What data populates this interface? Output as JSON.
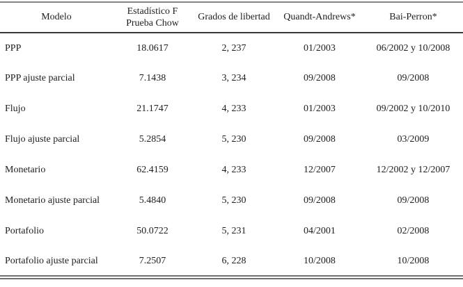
{
  "table": {
    "header": {
      "modelo": "Modelo",
      "estadistico_line1": "Estadístico F",
      "estadistico_line2": "Prueba Chow",
      "grados": "Grados de libertad",
      "quandt": "Quandt-Andrews*",
      "bai": "Bai-Perron*"
    },
    "rows": [
      [
        "PPP",
        "18.0617",
        "2, 237",
        "01/2003",
        "06/2002 y 10/2008"
      ],
      [
        "PPP ajuste parcial",
        "7.1438",
        "3, 234",
        "09/2008",
        "09/2008"
      ],
      [
        "Flujo",
        "21.1747",
        "4, 233",
        "01/2003",
        "09/2002 y 10/2010"
      ],
      [
        "Flujo ajuste parcial",
        "5.2854",
        "5, 230",
        "09/2008",
        "03/2009"
      ],
      [
        "Monetario",
        "62.4159",
        "4, 233",
        "12/2007",
        "12/2002 y 12/2007"
      ],
      [
        "Monetario ajuste parcial",
        "5.4840",
        "5, 230",
        "09/2008",
        "09/2008"
      ],
      [
        "Portafolio",
        "50.0722",
        "5, 231",
        "04/2001",
        "02/2008"
      ],
      [
        "Portafolio ajuste parcial",
        "7.2507",
        "6, 228",
        "10/2008",
        "10/2008"
      ]
    ],
    "colors": {
      "text": "#1e1e1e",
      "top_rule": "#858585",
      "header_rule": "#3a3a3a",
      "bottom_rule": "#6f6f6f",
      "background": "#ffffff"
    }
  }
}
